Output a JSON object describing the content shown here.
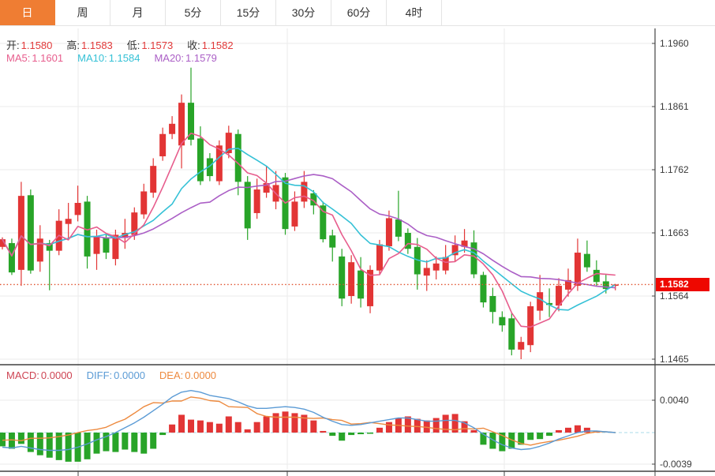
{
  "tabs": {
    "items": [
      {
        "key": "day",
        "label": "日",
        "active": true
      },
      {
        "key": "week",
        "label": "周",
        "active": false
      },
      {
        "key": "month",
        "label": "月",
        "active": false
      },
      {
        "key": "5min",
        "label": "5分",
        "active": false
      },
      {
        "key": "15min",
        "label": "15分",
        "active": false
      },
      {
        "key": "30min",
        "label": "30分",
        "active": false
      },
      {
        "key": "60min",
        "label": "60分",
        "active": false
      },
      {
        "key": "4hour",
        "label": "4时",
        "active": false
      }
    ]
  },
  "ohlc": {
    "open_label": "开:",
    "open_value": "1.1580",
    "high_label": "高:",
    "high_value": "1.1583",
    "low_label": "低:",
    "low_value": "1.1573",
    "close_label": "收:",
    "close_value": "1.1582"
  },
  "ma": {
    "ma5_label": "MA5:",
    "ma5_value": "1.1601",
    "ma10_label": "MA10:",
    "ma10_value": "1.1584",
    "ma20_label": "MA20:",
    "ma20_value": "1.1579"
  },
  "macd_header": {
    "macd_label": "MACD:",
    "macd_value": "0.0000",
    "diff_label": "DIFF:",
    "diff_value": "0.0000",
    "dea_label": "DEA:",
    "dea_value": "0.0000"
  },
  "price_axis": {
    "ticks": [
      "1.1960",
      "1.1861",
      "1.1762",
      "1.1663",
      "1.1564",
      "1.1465"
    ],
    "current_price": "1.1582"
  },
  "macd_axis": {
    "ticks": [
      "0.0040",
      "-0.0039"
    ]
  },
  "colors": {
    "up": "#e23535",
    "down": "#28a428",
    "ma5": "#e75d8d",
    "ma10": "#35c1d6",
    "ma20": "#ab5fc6",
    "macd_label": "#ce4453",
    "diff": "#5b9bd5",
    "dea": "#ed8a3f",
    "tab_active_bg": "#ef7d33",
    "price_tag_bg": "#ee0800",
    "price_line": "#e0512d",
    "grid": "#ebebeb",
    "axis": "#444",
    "text": "#3a3a3a",
    "zero_dash": "#aadbe8"
  },
  "chart_data": {
    "type": "candlestick+macd",
    "main": {
      "type": "candlestick",
      "note": "red = up candle, green = down candle (CN convention)",
      "ohlc_format": [
        "open",
        "high",
        "low",
        "close"
      ],
      "y_ticks": [
        1.196,
        1.1861,
        1.1762,
        1.1663,
        1.1564,
        1.1465
      ],
      "current_price": 1.1582,
      "moving_averages": {
        "MA5": 1.1601,
        "MA10": 1.1584,
        "MA20": 1.1579
      },
      "candles": [
        [
          1.1641,
          1.1656,
          1.1637,
          1.1653
        ],
        [
          1.1647,
          1.1654,
          1.1597,
          1.1601
        ],
        [
          1.1605,
          1.1743,
          1.158,
          1.1721
        ],
        [
          1.1722,
          1.1731,
          1.1599,
          1.1604
        ],
        [
          1.1618,
          1.1675,
          1.1602,
          1.1654
        ],
        [
          1.1647,
          1.1652,
          1.1573,
          1.1635
        ],
        [
          1.1635,
          1.17,
          1.1628,
          1.1682
        ],
        [
          1.1677,
          1.171,
          1.1654,
          1.1685
        ],
        [
          1.1691,
          1.1737,
          1.1681,
          1.171
        ],
        [
          1.1712,
          1.1721,
          1.1607,
          1.1626
        ],
        [
          1.163,
          1.1668,
          1.1605,
          1.1658
        ],
        [
          1.1656,
          1.1662,
          1.1622,
          1.1632
        ],
        [
          1.1622,
          1.1668,
          1.1612,
          1.166
        ],
        [
          1.1655,
          1.1685,
          1.1638,
          1.1663
        ],
        [
          1.166,
          1.1703,
          1.1652,
          1.1695
        ],
        [
          1.1692,
          1.174,
          1.1685,
          1.1728
        ],
        [
          1.1726,
          1.178,
          1.1718,
          1.1768
        ],
        [
          1.1783,
          1.1828,
          1.1776,
          1.1818
        ],
        [
          1.1818,
          1.1846,
          1.181,
          1.1834
        ],
        [
          1.18,
          1.188,
          1.1764,
          1.1867
        ],
        [
          1.1867,
          1.1922,
          1.18,
          1.1809
        ],
        [
          1.1811,
          1.183,
          1.1738,
          1.1744
        ],
        [
          1.178,
          1.1788,
          1.1744,
          1.1752
        ],
        [
          1.1744,
          1.1808,
          1.1738,
          1.18
        ],
        [
          1.1788,
          1.1831,
          1.178,
          1.182
        ],
        [
          1.1818,
          1.1825,
          1.1722,
          1.1743
        ],
        [
          1.1743,
          1.1752,
          1.1652,
          1.167
        ],
        [
          1.1694,
          1.1748,
          1.1685,
          1.1731
        ],
        [
          1.1726,
          1.1768,
          1.1718,
          1.1741
        ],
        [
          1.1712,
          1.176,
          1.17,
          1.1738
        ],
        [
          1.175,
          1.1757,
          1.166,
          1.1669
        ],
        [
          1.1673,
          1.1728,
          1.1666,
          1.1712
        ],
        [
          1.1712,
          1.176,
          1.1702,
          1.1743
        ],
        [
          1.1725,
          1.173,
          1.1692,
          1.1706
        ],
        [
          1.1706,
          1.1712,
          1.1648,
          1.1653
        ],
        [
          1.1659,
          1.1668,
          1.1618,
          1.164
        ],
        [
          1.1626,
          1.1638,
          1.1548,
          1.156
        ],
        [
          1.1564,
          1.1628,
          1.1552,
          1.1617
        ],
        [
          1.1604,
          1.1625,
          1.1546,
          1.156
        ],
        [
          1.1548,
          1.1612,
          1.1537,
          1.1605
        ],
        [
          1.1604,
          1.1652,
          1.1597,
          1.1645
        ],
        [
          1.1642,
          1.1698,
          1.1635,
          1.1686
        ],
        [
          1.1684,
          1.1729,
          1.165,
          1.1657
        ],
        [
          1.1663,
          1.167,
          1.163,
          1.1638
        ],
        [
          1.1641,
          1.1655,
          1.1574,
          1.1598
        ],
        [
          1.1596,
          1.162,
          1.1572,
          1.1608
        ],
        [
          1.1604,
          1.1626,
          1.159,
          1.1615
        ],
        [
          1.1604,
          1.1644,
          1.1598,
          1.1625
        ],
        [
          1.1628,
          1.1659,
          1.1618,
          1.1644
        ],
        [
          1.1641,
          1.1669,
          1.1632,
          1.1651
        ],
        [
          1.1648,
          1.1667,
          1.1592,
          1.1598
        ],
        [
          1.1597,
          1.1602,
          1.1546,
          1.1554
        ],
        [
          1.1564,
          1.1577,
          1.1521,
          1.1539
        ],
        [
          1.1531,
          1.154,
          1.1508,
          1.1518
        ],
        [
          1.1529,
          1.1537,
          1.1471,
          1.148
        ],
        [
          1.148,
          1.15,
          1.1465,
          1.1492
        ],
        [
          1.1487,
          1.1555,
          1.1476,
          1.1548
        ],
        [
          1.1541,
          1.1597,
          1.1526,
          1.157
        ],
        [
          1.1553,
          1.1576,
          1.1531,
          1.155
        ],
        [
          1.1549,
          1.1592,
          1.154,
          1.158
        ],
        [
          1.1574,
          1.1607,
          1.1563,
          1.1589
        ],
        [
          1.158,
          1.1654,
          1.1572,
          1.1632
        ],
        [
          1.163,
          1.1651,
          1.1602,
          1.1609
        ],
        [
          1.1605,
          1.162,
          1.158,
          1.1586
        ],
        [
          1.1587,
          1.1598,
          1.1568,
          1.1575
        ],
        [
          1.158,
          1.1583,
          1.1573,
          1.1582
        ]
      ]
    },
    "indicator": {
      "type": "macd",
      "y_ticks": [
        0.004,
        -0.0039
      ],
      "unit": 0.0001,
      "current_values": {
        "MACD": 0.0,
        "DIFF": 0.0,
        "DEA": 0.0
      },
      "histogram": [
        -17,
        -20,
        -14,
        -24,
        -28,
        -31,
        -34,
        -36,
        -36,
        -33,
        -26,
        -23,
        -24,
        -21,
        -24,
        -26,
        -20,
        -3,
        10,
        22,
        16,
        15,
        13,
        11,
        20,
        13,
        4,
        13,
        20,
        24,
        26,
        24,
        22,
        15,
        2,
        -4,
        -10,
        -3,
        -2,
        -1,
        6,
        13,
        18,
        20,
        17,
        15,
        18,
        22,
        23,
        14,
        3,
        -15,
        -20,
        -23,
        -20,
        -15,
        -9,
        -8,
        -4,
        3,
        6,
        9,
        6,
        2,
        0,
        0
      ],
      "diff": [
        -18,
        -19,
        -17,
        -19,
        -21,
        -22,
        -22,
        -21,
        -18,
        -14,
        -9,
        -5,
        0,
        6,
        12,
        19,
        27,
        35,
        44,
        50,
        52,
        50,
        46,
        44,
        42,
        38,
        33,
        30,
        30,
        31,
        32,
        31,
        29,
        25,
        19,
        14,
        10,
        9,
        10,
        12,
        14,
        16,
        18,
        18,
        16,
        14,
        14,
        15,
        15,
        12,
        6,
        -2,
        -9,
        -15,
        -19,
        -21,
        -20,
        -17,
        -13,
        -8,
        -4,
        0,
        2,
        2,
        1,
        0
      ],
      "dea": [
        -9.5,
        -9,
        -10,
        -7,
        -7,
        -6.5,
        -5,
        -3,
        0,
        2.5,
        4,
        6.5,
        12,
        16.5,
        24,
        32,
        37,
        36.5,
        39,
        39,
        44,
        42.5,
        39.5,
        38.5,
        32,
        31.5,
        31,
        23.5,
        20,
        19,
        19,
        19,
        18,
        17.5,
        18,
        16,
        15,
        10.5,
        11,
        12.5,
        11,
        9.5,
        9,
        8,
        7.5,
        6.5,
        5,
        4,
        3.5,
        5,
        4.5,
        5.5,
        1,
        -3.5,
        -9,
        -13.5,
        -15.5,
        -13,
        -11,
        -9.5,
        -7,
        -4.5,
        -1,
        1,
        1,
        0
      ]
    }
  }
}
